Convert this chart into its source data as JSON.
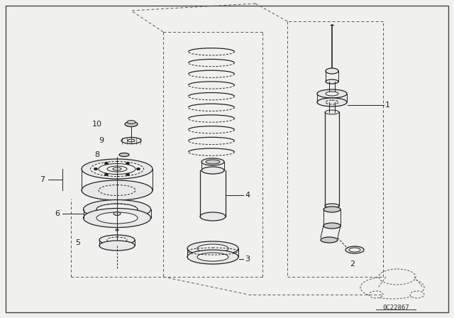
{
  "bg_color": "#f0f0ee",
  "line_color": "#222222",
  "label_color": "#111111",
  "diagram_code": "0C22867",
  "part_labels": [
    "1",
    "2",
    "3",
    "4",
    "5",
    "6",
    "7",
    "8",
    "9",
    "10"
  ],
  "figsize": [
    6.4,
    4.48
  ],
  "dpi": 100
}
